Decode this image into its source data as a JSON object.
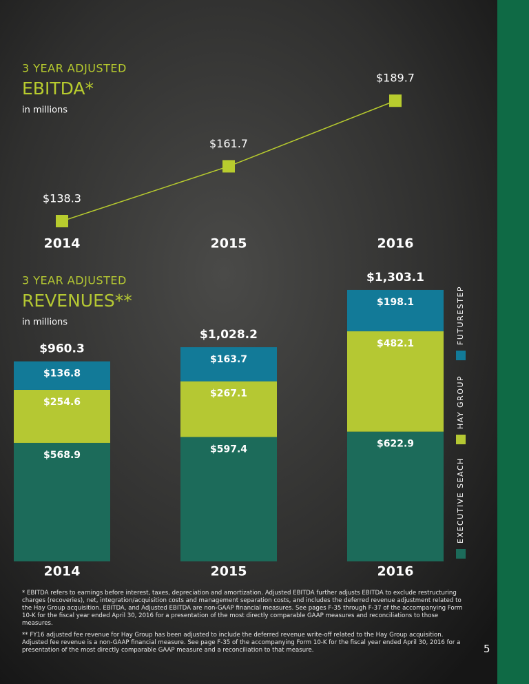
{
  "chart_data": [
    {
      "type": "line",
      "supertitle": "3 YEAR ADJUSTED",
      "title": "EBITDA*",
      "subtitle": "in millions",
      "categories": [
        "2014",
        "2015",
        "2016"
      ],
      "values": [
        138.3,
        161.7,
        189.7
      ],
      "value_labels": [
        "$138.3",
        "$161.7",
        "$189.7"
      ],
      "color": "#b8cc2e"
    },
    {
      "type": "bar",
      "stacked": true,
      "supertitle": "3 YEAR ADJUSTED",
      "title": "REVENUES**",
      "subtitle": "in millions",
      "categories": [
        "2014",
        "2015",
        "2016"
      ],
      "series": [
        {
          "name": "EXECUTIVE SEACH",
          "color": "#1c6b5a",
          "values": [
            568.9,
            597.4,
            622.9
          ],
          "value_labels": [
            "$568.9",
            "$597.4",
            "$622.9"
          ]
        },
        {
          "name": "HAY GROUP",
          "color": "#b5c833",
          "values": [
            254.6,
            267.1,
            482.1
          ],
          "value_labels": [
            "$254.6",
            "$267.1",
            "$482.1"
          ]
        },
        {
          "name": "FUTURESTEP",
          "color": "#127a98",
          "values": [
            136.8,
            163.7,
            198.1
          ],
          "value_labels": [
            "$136.8",
            "$163.7",
            "$198.1"
          ]
        }
      ],
      "totals": [
        960.3,
        1028.2,
        1303.1
      ],
      "total_labels": [
        "$960.3",
        "$1,028.2",
        "$1,303.1"
      ]
    }
  ],
  "footnotes": [
    "* EBITDA refers to earnings before interest, taxes, depreciation and amortization. Adjusted EBITDA further adjusts EBITDA to exclude restructuring charges (recoveries), net, integration/acquisition costs and management separation costs, and includes the deferred revenue adjustment related to the Hay Group acquisition. EBITDA, and Adjusted EBITDA are non-GAAP financial measures. See pages F-35 through F-37 of the accompanying Form 10-K for the fiscal year ended April 30, 2016 for a presentation of the most directly comparable GAAP measures and reconciliations to those measures.",
    "** FY16 adjusted fee revenue for Hay Group has been adjusted to include the deferred revenue write-off related to the Hay Group acquisition. Adjusted fee revenue is a non-GAAP financial measure. See page F-35 of the accompanying Form 10-K for the fiscal year ended April 30, 2016 for a presentation of the most directly comparable GAAP measure and a reconciliation to that measure."
  ],
  "page_number": 5
}
